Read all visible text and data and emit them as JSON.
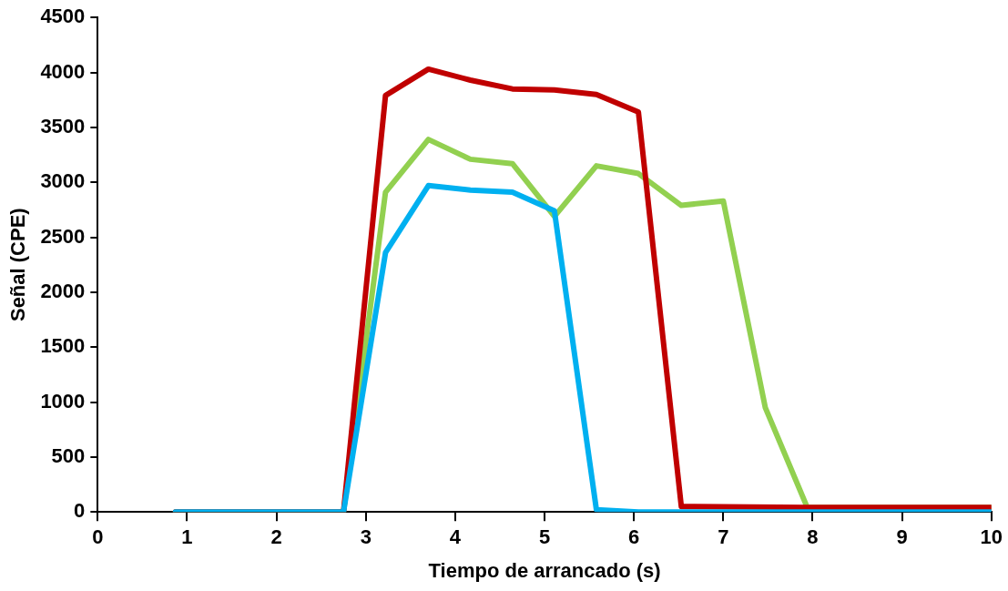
{
  "chart_data": {
    "type": "line",
    "xlabel": "Tiempo de arrancado (s)",
    "ylabel": "Señal (CPE)",
    "xlim": [
      0,
      10
    ],
    "xticks": [
      0,
      1,
      2,
      3,
      4,
      5,
      6,
      7,
      8,
      9,
      10
    ],
    "ylim": [
      0,
      4500
    ],
    "yticks": [
      0,
      500,
      1000,
      1500,
      2000,
      2500,
      3000,
      3500,
      4000,
      4500
    ],
    "grid": false,
    "legend": false,
    "marker": "none",
    "line_style": "solid",
    "series": [
      {
        "color": "#00b0f0",
        "x": [
          0.87,
          2.75,
          3.22,
          3.7,
          4.17,
          4.64,
          5.11,
          5.58,
          6.05,
          10
        ],
        "values": [
          0,
          0,
          2360,
          2970,
          2930,
          2910,
          2740,
          20,
          0,
          0
        ]
      },
      {
        "color": "#c00000",
        "x": [
          0.87,
          2.75,
          3.22,
          3.7,
          4.17,
          4.64,
          5.11,
          5.58,
          6.05,
          6.53,
          7.94,
          10
        ],
        "values": [
          0,
          0,
          3790,
          4030,
          3930,
          3850,
          3840,
          3800,
          3640,
          50,
          40,
          40
        ]
      },
      {
        "color": "#92d050",
        "x": [
          0.87,
          2.75,
          3.22,
          3.7,
          4.17,
          4.64,
          5.11,
          5.58,
          6.05,
          6.53,
          7.0,
          7.47,
          7.94,
          10
        ],
        "values": [
          0,
          0,
          2910,
          3390,
          3210,
          3170,
          2690,
          3150,
          3080,
          2790,
          2830,
          950,
          40,
          40
        ]
      }
    ]
  }
}
